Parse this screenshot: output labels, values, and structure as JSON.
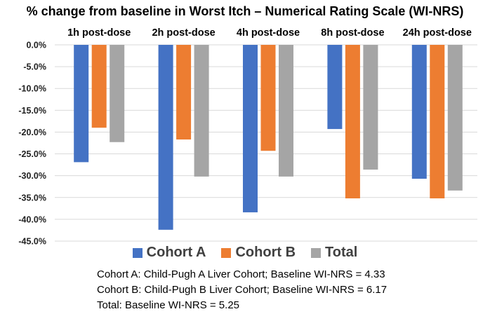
{
  "chart_data": {
    "type": "bar",
    "title": "% change from baseline in Worst Itch – Numerical Rating Scale (WI-NRS)",
    "categories": [
      "1h post-dose",
      "2h post-dose",
      "4h post-dose",
      "8h post-dose",
      "24h post-dose"
    ],
    "category_label_position": "top",
    "ylim": [
      -45,
      0
    ],
    "yticks": [
      0,
      -5,
      -10,
      -15,
      -20,
      -25,
      -30,
      -35,
      -40,
      -45
    ],
    "ytick_labels": [
      "0.0%",
      "-5.0%",
      "-10.0%",
      "-15.0%",
      "-20.0%",
      "-25.0%",
      "-30.0%",
      "-35.0%",
      "-40.0%",
      "-45.0%"
    ],
    "grid": true,
    "legend_position": "bottom",
    "series": [
      {
        "name": "Cohort A",
        "color": "#4472C4",
        "values": [
          -26.9,
          -42.4,
          -38.4,
          -19.3,
          -30.7
        ]
      },
      {
        "name": "Cohort B",
        "color": "#ED7D31",
        "values": [
          -19.0,
          -21.7,
          -24.3,
          -35.2,
          -35.2
        ]
      },
      {
        "name": "Total",
        "color": "#A5A5A5",
        "values": [
          -22.3,
          -30.2,
          -30.2,
          -28.6,
          -33.4
        ]
      }
    ]
  },
  "notes": [
    "Cohort A: Child-Pugh A Liver Cohort; Baseline WI-NRS = 4.33",
    "Cohort B: Child-Pugh B Liver Cohort; Baseline WI-NRS = 6.17",
    "Total: Baseline WI-NRS = 5.25"
  ]
}
